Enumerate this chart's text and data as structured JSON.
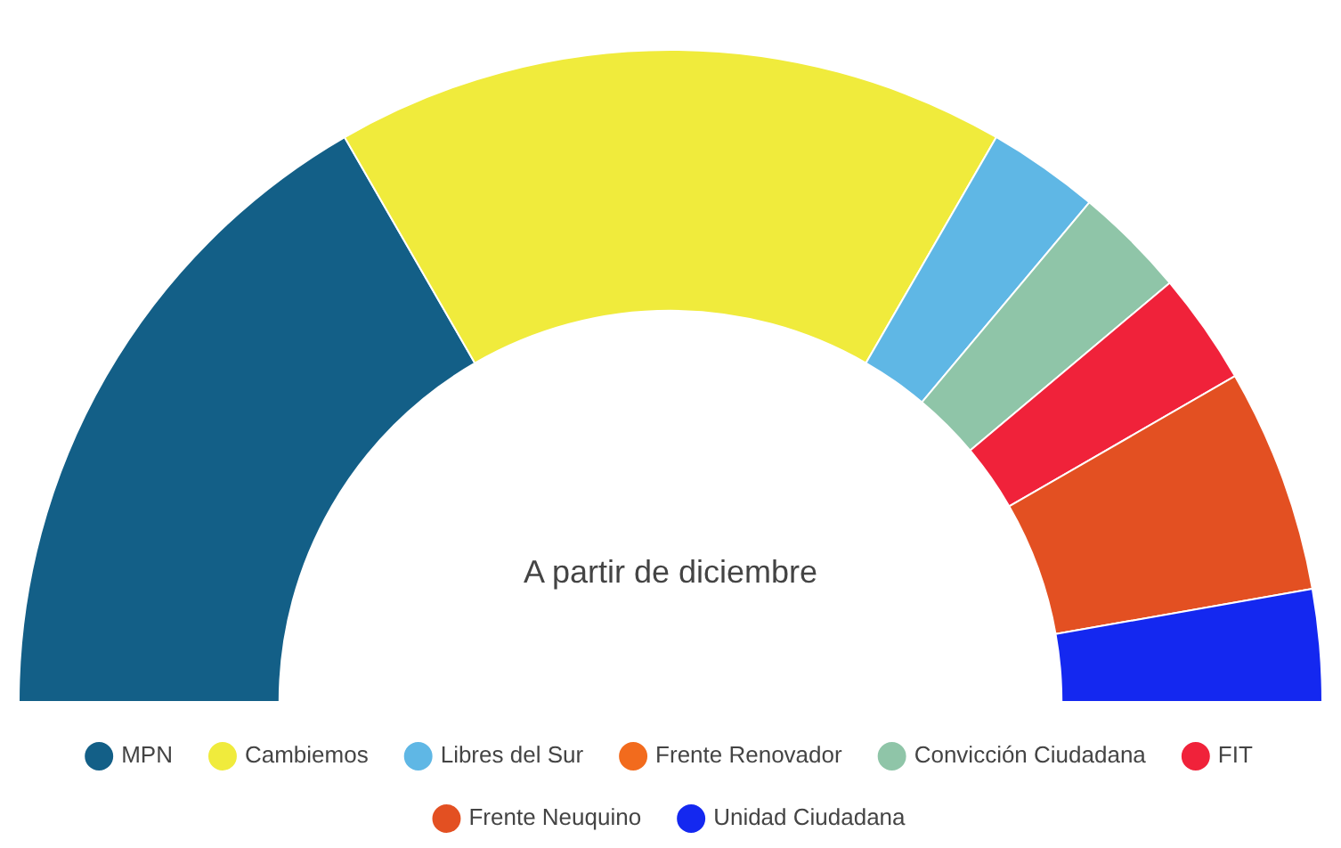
{
  "chart_data": {
    "type": "donut",
    "categories": [
      "MPN",
      "Cambiemos",
      "Libres del Sur",
      "Frente Renovador",
      "Convicción Ciudadana",
      "FIT",
      "Frente Neuquino",
      "Unidad Ciudadana"
    ],
    "values": [
      33.33,
      33.33,
      5.56,
      0,
      5.56,
      5.56,
      11.11,
      5.55
    ],
    "colors": [
      "#135f87",
      "#f0eb3c",
      "#5fb7e5",
      "#f26b1d",
      "#8fc5a8",
      "#f0223a",
      "#e35022",
      "#1428f0"
    ],
    "annotations": [
      "A partir de diciembre"
    ],
    "legend": "bottom"
  }
}
